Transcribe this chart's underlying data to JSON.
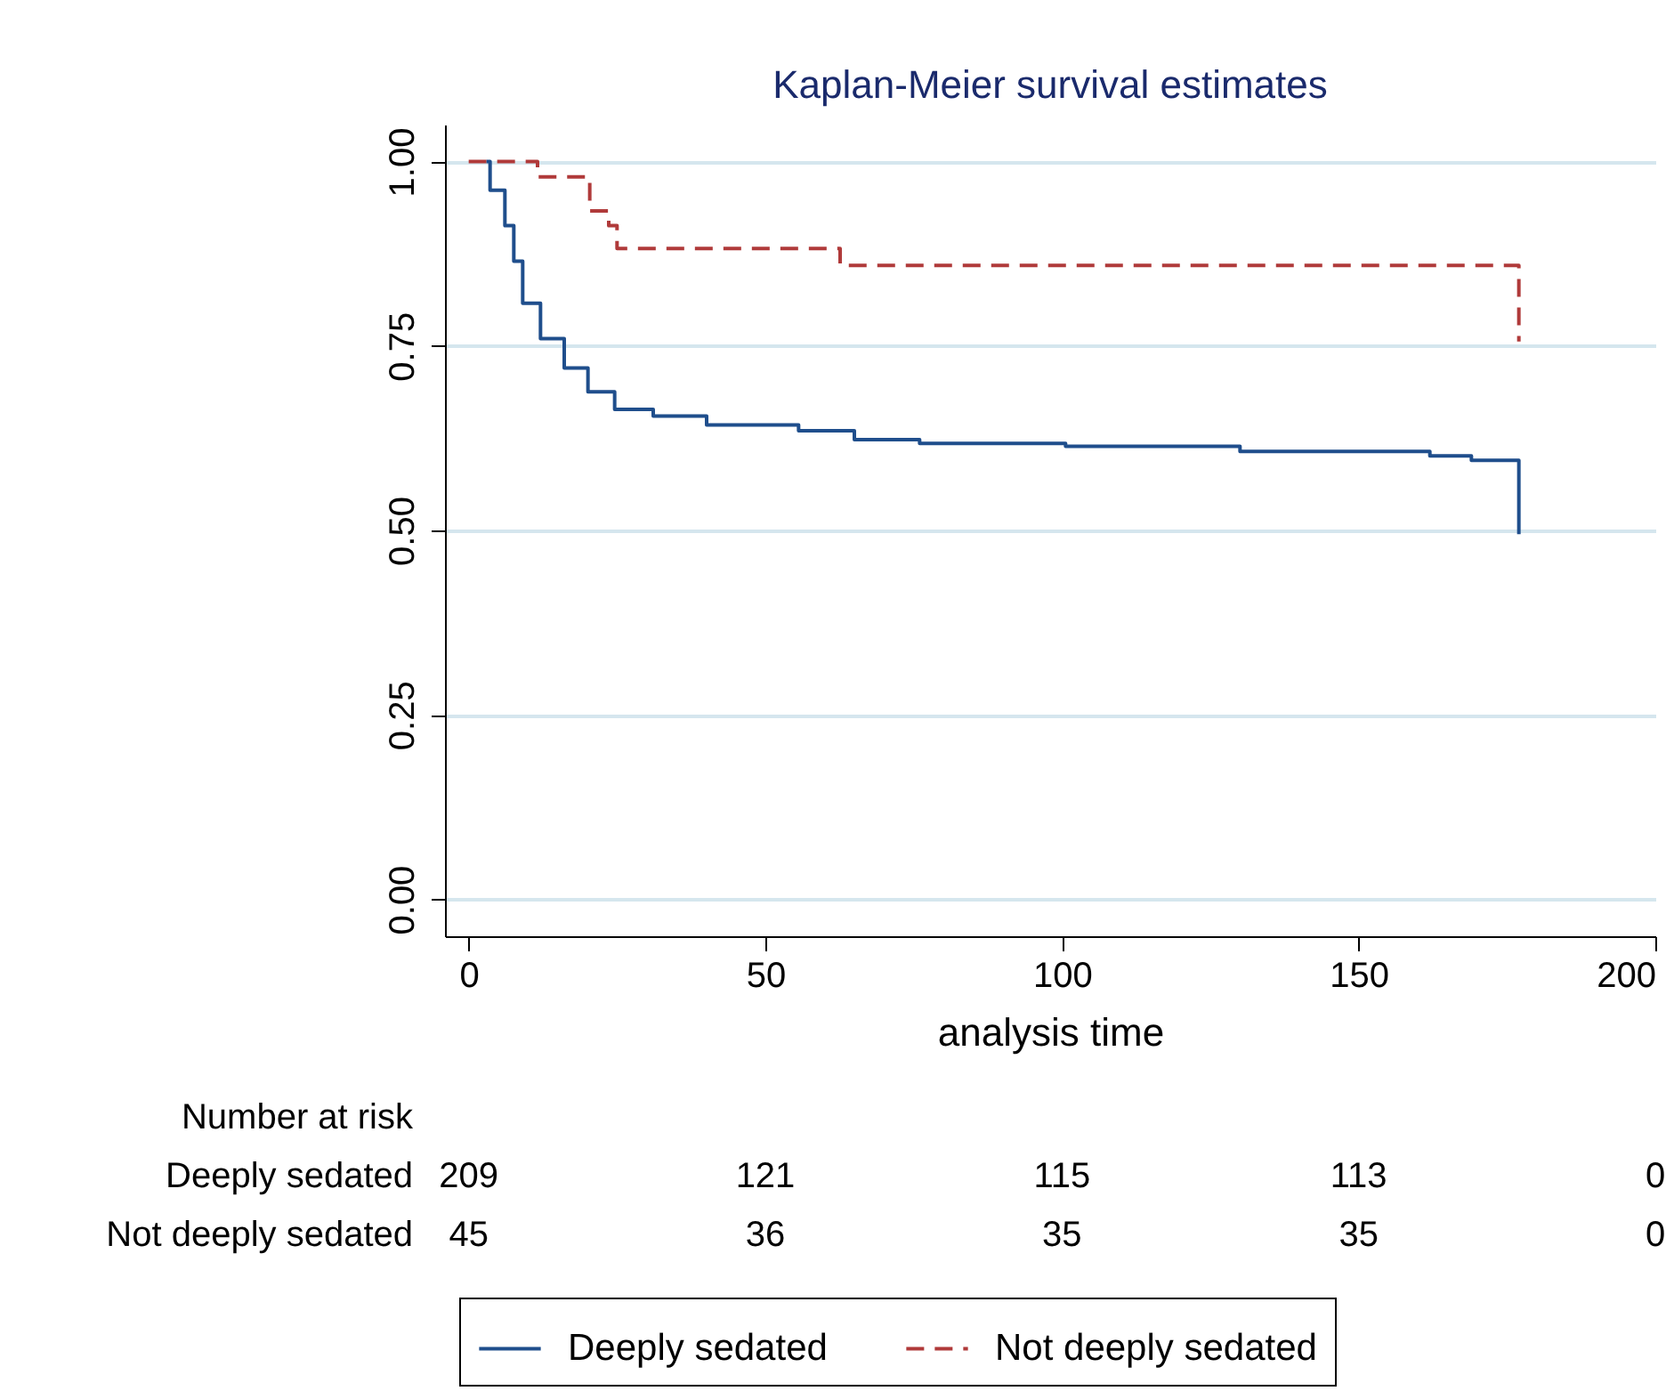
{
  "chart_data": {
    "type": "step",
    "title": "Kaplan-Meier survival estimates",
    "xlabel": "analysis time",
    "xlim": [
      -4,
      200
    ],
    "xticks": [
      0,
      50,
      100,
      150,
      200
    ],
    "ylim": [
      -0.05,
      1.05
    ],
    "yticks": [
      {
        "value": 0,
        "label": "0.00"
      },
      {
        "value": 0.25,
        "label": "0.25"
      },
      {
        "value": 0.5,
        "label": "0.50"
      },
      {
        "value": 0.75,
        "label": "0.75"
      },
      {
        "value": 1,
        "label": "1.00"
      }
    ],
    "grid": "y",
    "legend": "bottom",
    "series": [
      {
        "name": "Deeply sedated",
        "color": "#1f4e8c",
        "line_style": "solid",
        "x": [
          3,
          3.6,
          6.1,
          7.6,
          9.1,
          12.1,
          16.1,
          20.1,
          24.6,
          31.1,
          40.1,
          55.6,
          65,
          76,
          100.6,
          130,
          162,
          169,
          177
        ],
        "values": [
          1,
          0.961,
          0.913,
          0.865,
          0.808,
          0.76,
          0.72,
          0.688,
          0.664,
          0.655,
          0.643,
          0.635,
          0.623,
          0.618,
          0.614,
          0.607,
          0.601,
          0.595,
          0.495
        ]
      },
      {
        "name": "Not deeply sedated",
        "color": "#b03a3a",
        "line_style": "dashed",
        "x": [
          0,
          11.6,
          20.4,
          23.6,
          25,
          62.6,
          177
        ],
        "values": [
          1,
          0.979,
          0.933,
          0.913,
          0.882,
          0.859,
          0.756
        ]
      }
    ],
    "annotations": [
      "Number at risk",
      "Deeply sedated",
      "209",
      "121",
      "115",
      "113",
      "0",
      "Not deeply sedated",
      "45",
      "36",
      "35",
      "35",
      "0"
    ]
  }
}
